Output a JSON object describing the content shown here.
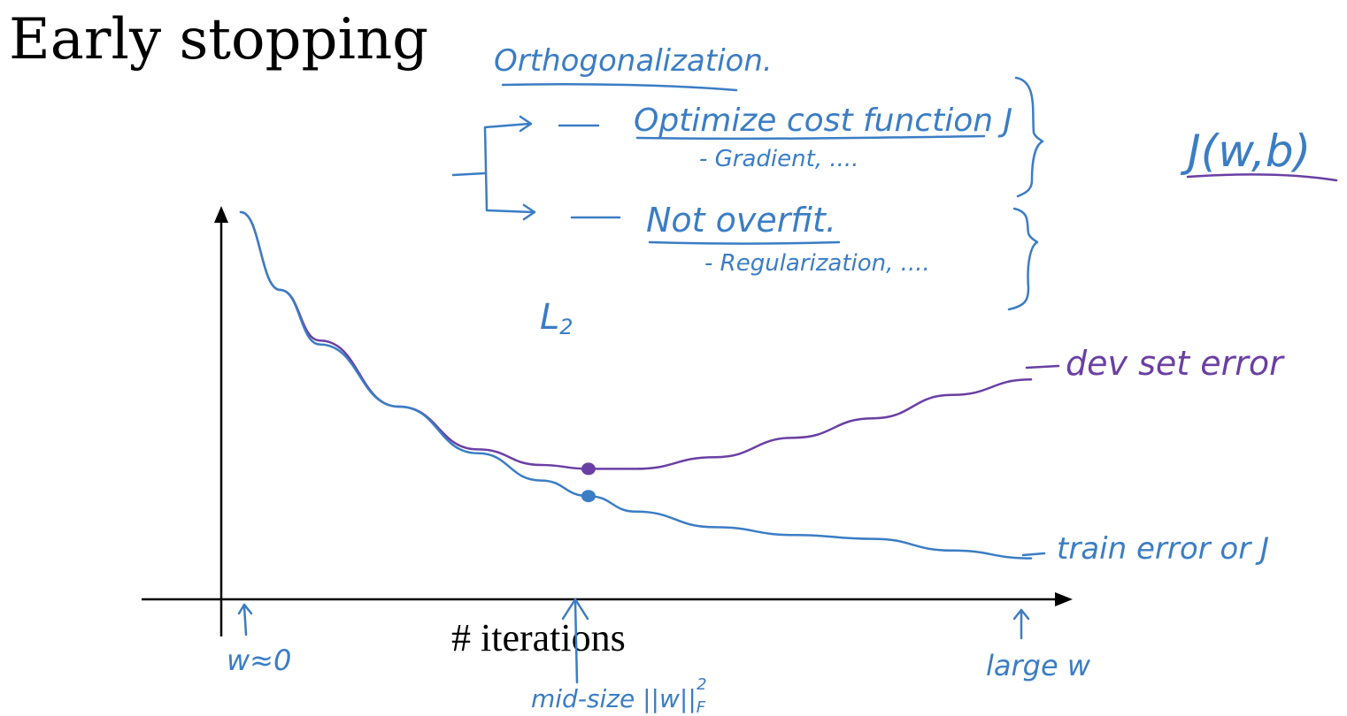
{
  "slide": {
    "title": "Early stopping",
    "x_axis_label": "# iterations"
  },
  "annotations": {
    "orthogonalization": "Orthogonalization.",
    "optimize": "Optimize cost function J",
    "gradient": "- Gradient, ....",
    "not_overfit": "Not overfit.",
    "regularization": "- Regularization, ....",
    "l2": "L",
    "l2_sub": "2",
    "cost_function": "J(w,b)",
    "dev_label": "dev set error",
    "train_label": "train error or J",
    "w_zero": "w≈0",
    "mid_size_prefix": "mid-size ||w||",
    "mid_size_sub": "F",
    "mid_size_sup": "2",
    "large_w": "large w"
  },
  "colors": {
    "title": "#000000",
    "axis": "#000000",
    "blue_ink": "#3b7dc4",
    "purple_ink": "#6a3fa3"
  },
  "chart_data": {
    "type": "line",
    "xlabel": "# iterations",
    "ylabel": "",
    "series": [
      {
        "name": "dev set error",
        "color": "#6a3fa3",
        "x": [
          0,
          0.05,
          0.1,
          0.2,
          0.3,
          0.38,
          0.44,
          0.5,
          0.6,
          0.7,
          0.8,
          0.9,
          1.0
        ],
        "y": [
          1.0,
          0.8,
          0.67,
          0.5,
          0.39,
          0.35,
          0.34,
          0.34,
          0.37,
          0.42,
          0.47,
          0.53,
          0.57
        ]
      },
      {
        "name": "train error or J",
        "color": "#3b7dc4",
        "x": [
          0,
          0.05,
          0.1,
          0.2,
          0.3,
          0.38,
          0.44,
          0.5,
          0.6,
          0.7,
          0.8,
          0.9,
          1.0
        ],
        "y": [
          1.0,
          0.8,
          0.66,
          0.5,
          0.38,
          0.31,
          0.27,
          0.23,
          0.19,
          0.17,
          0.16,
          0.13,
          0.11
        ]
      }
    ],
    "markers": [
      {
        "series": "dev set error",
        "x": 0.44,
        "y": 0.34
      },
      {
        "series": "train error or J",
        "x": 0.44,
        "y": 0.27
      }
    ]
  }
}
